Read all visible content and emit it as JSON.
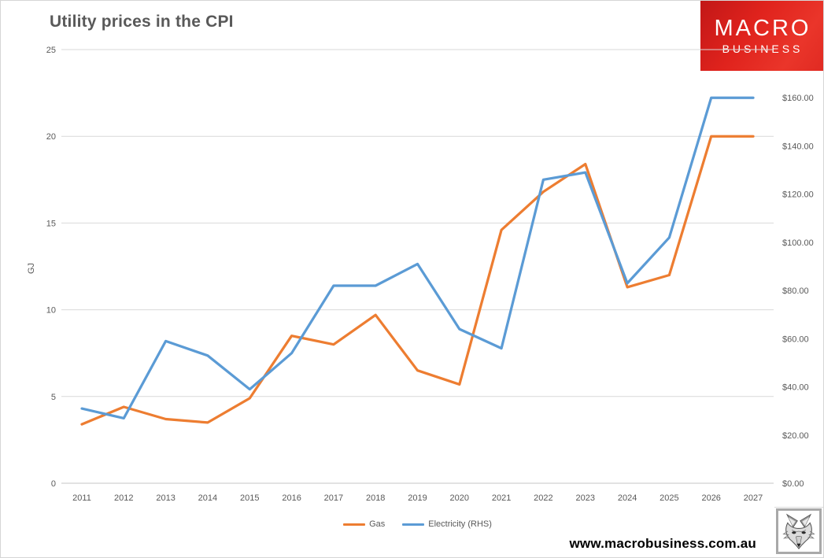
{
  "header": {
    "title": "Utility prices in the CPI",
    "logo": {
      "line1": "MACRO",
      "line2": "BUSINESS",
      "bg_color": "#e0231d",
      "text_color": "#ffffff"
    }
  },
  "legend": {
    "gas_label": "Gas",
    "electricity_label": "Electricity (RHS)"
  },
  "footer": {
    "url": "www.macrobusiness.com.au",
    "logo_icon": "wolf-sketch-icon"
  },
  "chart_data": {
    "type": "line",
    "title": "Utility prices in the CPI",
    "x": [
      2011,
      2012,
      2013,
      2014,
      2015,
      2016,
      2017,
      2018,
      2019,
      2020,
      2021,
      2022,
      2023,
      2024,
      2025,
      2026,
      2027
    ],
    "series": [
      {
        "name": "Gas",
        "axis": "left",
        "color": "#ED7D31",
        "values": [
          3.4,
          4.4,
          3.7,
          3.5,
          4.9,
          8.5,
          8.0,
          9.7,
          6.5,
          5.7,
          14.6,
          16.8,
          18.4,
          11.3,
          12.0,
          20.0,
          20.0
        ]
      },
      {
        "name": "Electricity (RHS)",
        "axis": "right",
        "color": "#5B9BD5",
        "values": [
          31,
          27,
          59,
          53,
          39,
          54,
          82,
          82,
          91,
          64,
          56,
          126,
          129,
          83,
          102,
          160,
          160
        ]
      }
    ],
    "left_axis": {
      "label": "GJ",
      "ticks": [
        0,
        5,
        10,
        15,
        20,
        25
      ],
      "range": [
        0,
        25
      ]
    },
    "right_axis": {
      "tick_values": [
        0,
        20,
        40,
        60,
        80,
        100,
        120,
        140,
        160
      ],
      "tick_labels": [
        "$0.00",
        "$20.00",
        "$40.00",
        "$60.00",
        "$80.00",
        "$100.00",
        "$120.00",
        "$140.00",
        "$160.00"
      ],
      "range": [
        0,
        180
      ]
    },
    "grid": true,
    "grid_color": "#d9d9d9",
    "baseline_color": "#c6c6c6",
    "legend_position": "bottom"
  }
}
